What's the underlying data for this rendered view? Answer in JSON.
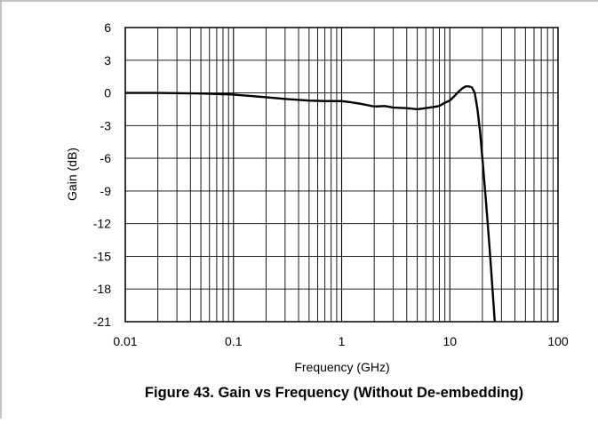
{
  "caption": "Figure 43. Gain vs Frequency (Without De-embedding)",
  "chart_data": {
    "type": "line",
    "title": "",
    "xlabel": "Frequency (GHz)",
    "ylabel": "Gain (dB)",
    "xscale": "log",
    "xlim": [
      0.01,
      100
    ],
    "ylim": [
      -21,
      6
    ],
    "x_ticks": [
      0.01,
      0.1,
      1,
      10,
      100
    ],
    "x_tick_labels": [
      "0.01",
      "0.1",
      "1",
      "10",
      "100"
    ],
    "y_ticks": [
      6,
      3,
      0,
      -3,
      -6,
      -9,
      -12,
      -15,
      -18,
      -21
    ],
    "y_tick_labels": [
      "6",
      "3",
      "0",
      "-3",
      "-6",
      "-9",
      "-12",
      "-15",
      "-18",
      "-21"
    ],
    "grid": true,
    "legend": "none",
    "series": [
      {
        "color": "#000000",
        "x": [
          0.01,
          0.02,
          0.05,
          0.1,
          0.15,
          0.2,
          0.3,
          0.5,
          0.7,
          1.0,
          1.2,
          1.5,
          2.0,
          2.5,
          3.0,
          4.0,
          5.0,
          6.0,
          7.0,
          8.0,
          9.0,
          10.0,
          11.0,
          12.0,
          13.0,
          14.0,
          15.0,
          16.0,
          17.0,
          18.0,
          19.0,
          20.0,
          21.0,
          22.0,
          23.0,
          24.0,
          25.0,
          26.0
        ],
        "y": [
          0.0,
          0.0,
          -0.05,
          -0.15,
          -0.3,
          -0.4,
          -0.55,
          -0.7,
          -0.75,
          -0.75,
          -0.85,
          -1.0,
          -1.25,
          -1.2,
          -1.35,
          -1.4,
          -1.5,
          -1.4,
          -1.3,
          -1.2,
          -0.9,
          -0.7,
          -0.3,
          0.1,
          0.4,
          0.6,
          0.6,
          0.5,
          0.0,
          -1.5,
          -3.5,
          -6.0,
          -8.5,
          -11.0,
          -13.5,
          -16.0,
          -18.5,
          -21.0
        ]
      }
    ]
  }
}
